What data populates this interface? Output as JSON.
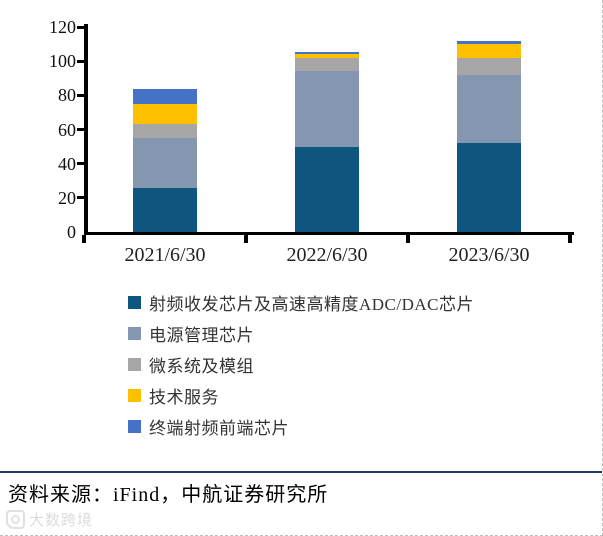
{
  "chart_data": {
    "type": "bar",
    "stacked": true,
    "grid": false,
    "legend_position": "bottom-left",
    "categories": [
      "2021/6/30",
      "2022/6/30",
      "2023/6/30"
    ],
    "series": [
      {
        "name": "射频收发芯片及高速高精度ADC/DAC芯片",
        "color": "#0F567E",
        "values": [
          26,
          50,
          52
        ]
      },
      {
        "name": "电源管理芯片",
        "color": "#8496B0",
        "values": [
          29,
          44,
          40
        ]
      },
      {
        "name": "微系统及模组",
        "color": "#A6A6A6",
        "values": [
          8,
          8,
          10
        ]
      },
      {
        "name": "技术服务",
        "color": "#FFC000",
        "values": [
          12,
          2.5,
          8
        ]
      },
      {
        "name": "终端射频前端芯片",
        "color": "#4472C4",
        "values": [
          9,
          1,
          2
        ]
      }
    ],
    "ylim": [
      0,
      120
    ],
    "yticks": [
      0,
      20,
      40,
      60,
      80,
      100,
      120
    ],
    "xlabel": "",
    "ylabel": "",
    "title": ""
  },
  "footer": {
    "source_text": "资料来源：iFind，中航证券研究所"
  },
  "watermark": {
    "text": "大数跨境"
  },
  "colors": {
    "axis": "#000000",
    "divider": "#203864"
  }
}
